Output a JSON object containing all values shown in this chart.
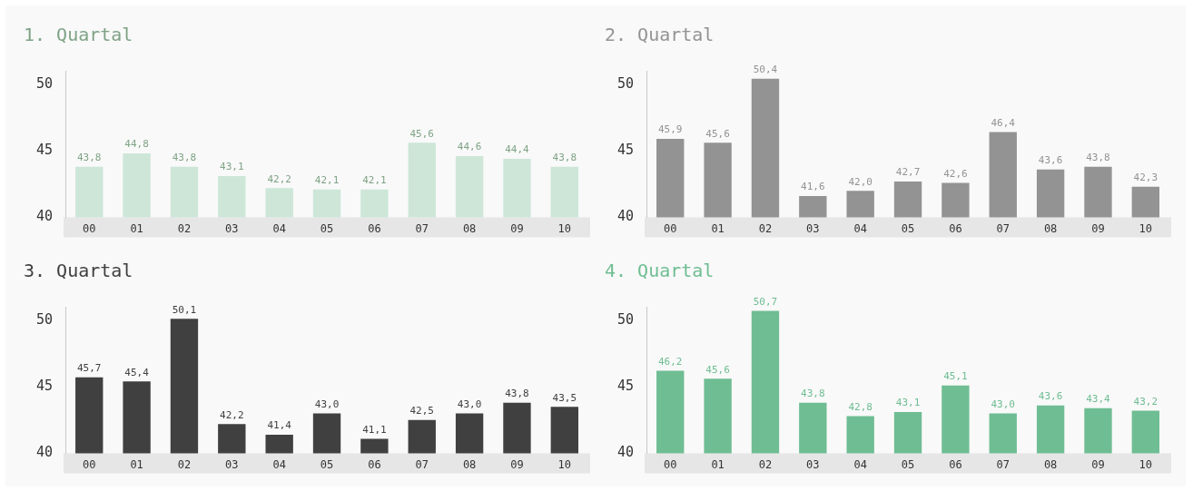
{
  "chart_data": [
    {
      "type": "bar",
      "title": "1. Quartal",
      "categories": [
        "00",
        "01",
        "02",
        "03",
        "04",
        "05",
        "06",
        "07",
        "08",
        "09",
        "10"
      ],
      "values": [
        43.8,
        44.8,
        43.8,
        43.1,
        42.2,
        42.1,
        42.1,
        45.6,
        44.6,
        44.4,
        43.8
      ],
      "value_labels": [
        "43,8",
        "44,8",
        "43,8",
        "43,1",
        "42,2",
        "42,1",
        "42,1",
        "45,6",
        "44,6",
        "44,4",
        "43,8"
      ],
      "color": "#cde6d8",
      "ylim": [
        40,
        51
      ],
      "yticks": [
        40,
        45,
        50
      ],
      "grid": false,
      "legend": false
    },
    {
      "type": "bar",
      "title": "2. Quartal",
      "categories": [
        "00",
        "01",
        "02",
        "03",
        "04",
        "05",
        "06",
        "07",
        "08",
        "09",
        "10"
      ],
      "values": [
        45.9,
        45.6,
        50.4,
        41.6,
        42.0,
        42.7,
        42.6,
        46.4,
        43.6,
        43.8,
        42.3
      ],
      "value_labels": [
        "45,9",
        "45,6",
        "50,4",
        "41,6",
        "42,0",
        "42,7",
        "42,6",
        "46,4",
        "43,6",
        "43,8",
        "42,3"
      ],
      "color": "#939393",
      "ylim": [
        40,
        51
      ],
      "yticks": [
        40,
        45,
        50
      ],
      "grid": false,
      "legend": false
    },
    {
      "type": "bar",
      "title": "3. Quartal",
      "categories": [
        "00",
        "01",
        "02",
        "03",
        "04",
        "05",
        "06",
        "07",
        "08",
        "09",
        "10"
      ],
      "values": [
        45.7,
        45.4,
        50.1,
        42.2,
        41.4,
        43.0,
        41.1,
        42.5,
        43.0,
        43.8,
        43.5
      ],
      "value_labels": [
        "45,7",
        "45,4",
        "50,1",
        "42,2",
        "41,4",
        "43,0",
        "41,1",
        "42,5",
        "43,0",
        "43,8",
        "43,5"
      ],
      "color": "#404041",
      "ylim": [
        40,
        51
      ],
      "yticks": [
        40,
        45,
        50
      ],
      "grid": false,
      "legend": false
    },
    {
      "type": "bar",
      "title": "4. Quartal",
      "categories": [
        "00",
        "01",
        "02",
        "03",
        "04",
        "05",
        "06",
        "07",
        "08",
        "09",
        "10"
      ],
      "values": [
        46.2,
        45.6,
        50.7,
        43.8,
        42.8,
        43.1,
        45.1,
        43.0,
        43.6,
        43.4,
        43.2
      ],
      "value_labels": [
        "46,2",
        "45,6",
        "50,7",
        "43,8",
        "42,8",
        "43,1",
        "45,1",
        "43,0",
        "43,6",
        "43,4",
        "43,2"
      ],
      "color": "#6fbd93",
      "ylim": [
        40,
        51
      ],
      "yticks": [
        40,
        45,
        50
      ],
      "grid": false,
      "legend": false
    }
  ]
}
